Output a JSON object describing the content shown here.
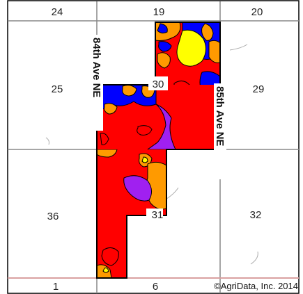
{
  "map": {
    "sections": {
      "s24": "24",
      "s19": "19",
      "s20": "20",
      "s25": "25",
      "s30": "30",
      "s29": "29",
      "s36": "36",
      "s31": "31",
      "s32": "32",
      "s1": "1",
      "s6": "6"
    },
    "roads": {
      "west": "84th Ave NE",
      "east": "85th Ave NE"
    },
    "credit": "©AgriData, Inc. 2014",
    "colors": {
      "red": "#ff0000",
      "orange": "#ff9a00",
      "yellow": "#ffff00",
      "blue": "#0000ff",
      "purple": "#a020f0",
      "grid": "#888888",
      "boundary": "#000000",
      "bottom_line": "#d9a0a0"
    }
  }
}
